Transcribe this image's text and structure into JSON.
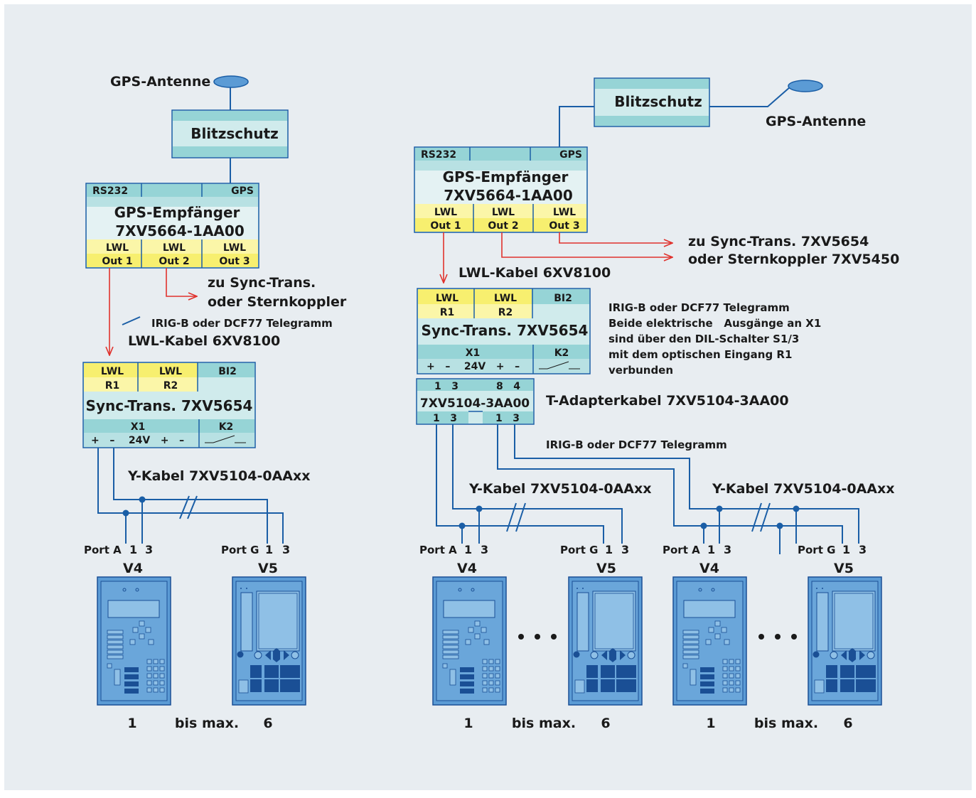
{
  "colors": {
    "background": "#e8edf1",
    "box_band_teal": "#96d4d6",
    "box_band_light": "#d0ebec",
    "box_yellow": "#fbf6a8",
    "wire_blue": "#1a5ea6",
    "fiber_red": "#e0322d",
    "device_blue": "#5b9bd5",
    "device_dark": "#1a4f95"
  },
  "left": {
    "gps_antenne": "GPS-Antenne",
    "blitzschutz": "Blitzschutz",
    "receiver": {
      "rs232": "RS232",
      "gps": "GPS",
      "title1": "GPS-Empfänger",
      "title2": "7XV5664-1AA00",
      "lwl1": "LWL",
      "lwl2": "LWL",
      "lwl3": "LWL",
      "out1": "Out 1",
      "out2": "Out 2",
      "out3": "Out 3"
    },
    "zu_sync_1": "zu Sync-Trans.",
    "zu_sync_2": "oder  Sternkoppler",
    "irig": "IRIG-B oder DCF77 Telegramm",
    "lwl_kabel": "LWL-Kabel 6XV8100",
    "sync": {
      "lwl1": "LWL",
      "lwl2": "LWL",
      "bi2": "BI2",
      "r1": "R1",
      "r2": "R2",
      "title": "Sync-Trans. 7XV5654",
      "x1": "X1",
      "k2": "K2",
      "pins": "+   –    24V   +   –"
    },
    "y_kabel": "Y-Kabel 7XV5104-0AAxx",
    "port_a": "Port A",
    "port_g": "Port G",
    "pin1": "1",
    "pin3": "3",
    "v4": "V4",
    "v5": "V5",
    "num1": "1",
    "bis": "bis max.",
    "num6": "6"
  },
  "right": {
    "blitzschutz": "Blitzschutz",
    "gps_antenne": "GPS-Antenne",
    "receiver": {
      "rs232": "RS232",
      "gps": "GPS",
      "title1": "GPS-Empfänger",
      "title2": "7XV5664-1AA00",
      "lwl1": "LWL",
      "lwl2": "LWL",
      "lwl3": "LWL",
      "out1": "Out 1",
      "out2": "Out 2",
      "out3": "Out 3"
    },
    "zu_sync_1": "zu Sync-Trans. 7XV5654",
    "zu_sync_2": "oder Sternkoppler 7XV5450",
    "lwl_kabel": "LWL-Kabel 6XV8100",
    "sync": {
      "lwl1": "LWL",
      "lwl2": "LWL",
      "bi2": "BI2",
      "r1": "R1",
      "r2": "R2",
      "title": "Sync-Trans. 7XV5654",
      "x1": "X1",
      "k2": "K2",
      "pins": "+   –    24V   +   –"
    },
    "note1": "IRIG-B oder DCF77 Telegramm",
    "note2": "Beide elektrische   Ausgänge an X1",
    "note3": "sind über den DIL-Schalter S1/3",
    "note4": "mit dem optischen Eingang R1",
    "note5": "verbunden",
    "tadapter": {
      "top_pins_a": "1   3",
      "top_pins_b": "8   4",
      "title": "7XV5104-3AA00",
      "bot_pins_a": "1   3",
      "bot_pins_b": "1   3"
    },
    "tadapter_label": "T-Adapterkabel 7XV5104-3AA00",
    "irig": "IRIG-B oder DCF77 Telegramm",
    "y_kabel_a": "Y-Kabel 7XV5104-0AAxx",
    "y_kabel_b": "Y-Kabel 7XV5104-0AAxx",
    "port_a": "Port A",
    "port_g": "Port G",
    "pin1": "1",
    "pin3": "3",
    "v4": "V4",
    "v5": "V5",
    "num1": "1",
    "bis": "bis max.",
    "num6": "6"
  }
}
